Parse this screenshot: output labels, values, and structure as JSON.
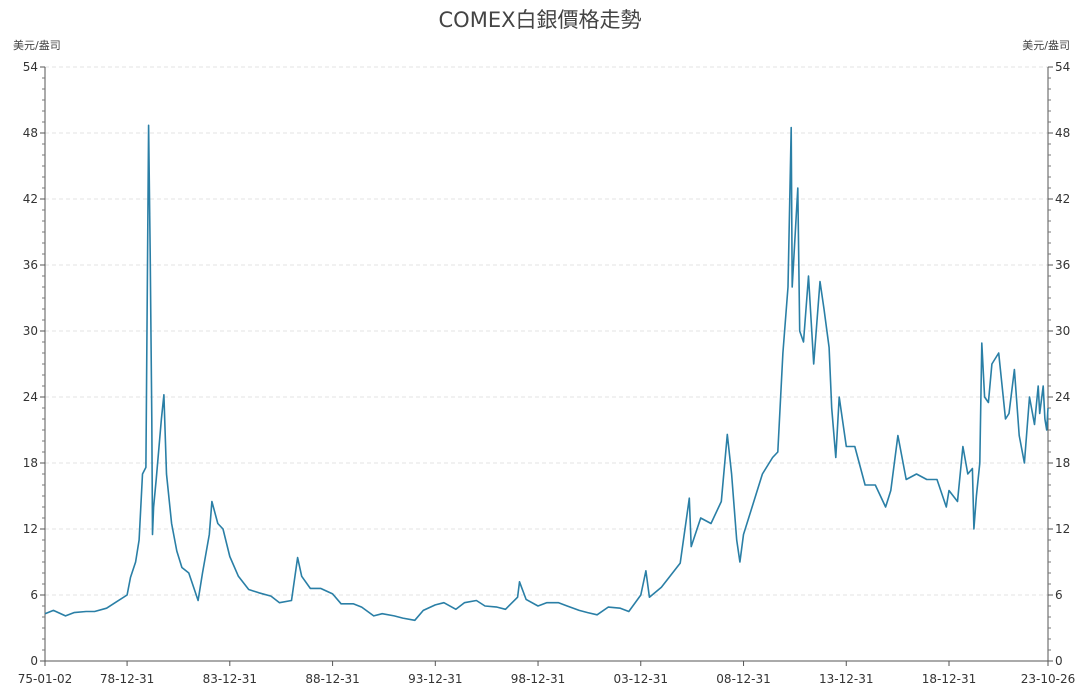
{
  "chart_data": {
    "type": "line",
    "title": "COMEX白銀價格走勢",
    "ylabel_left": "美元/盎司",
    "ylabel_right": "美元/盎司",
    "xlabel": "",
    "ylim": [
      0,
      54
    ],
    "yticks": [
      0,
      6,
      12,
      18,
      24,
      30,
      36,
      42,
      48,
      54
    ],
    "xlim": [
      "1975-01-02",
      "2023-10-26"
    ],
    "xtick_labels": [
      "75-01-02",
      "78-12-31",
      "83-12-31",
      "88-12-31",
      "93-12-31",
      "98-12-31",
      "03-12-31",
      "08-12-31",
      "13-12-31",
      "18-12-31",
      "23-10-26"
    ],
    "xtick_dates": [
      "1975-01-02",
      "1978-12-31",
      "1983-12-31",
      "1988-12-31",
      "1993-12-31",
      "1998-12-31",
      "2003-12-31",
      "2008-12-31",
      "2013-12-31",
      "2018-12-31",
      "2023-10-26"
    ],
    "grid": "horizontal dashed",
    "line_color": "#2a7fa6",
    "series": [
      {
        "name": "",
        "x": [
          "1975-01-02",
          "1975-06-01",
          "1976-01-01",
          "1976-06-01",
          "1977-01-01",
          "1977-06-01",
          "1978-01-01",
          "1978-06-01",
          "1978-12-31",
          "1979-03-01",
          "1979-06-01",
          "1979-08-01",
          "1979-10-01",
          "1979-12-01",
          "1980-01-18",
          "1980-02-15",
          "1980-03-15",
          "1980-03-27",
          "1980-04-15",
          "1980-06-01",
          "1980-09-01",
          "1980-10-15",
          "1980-12-01",
          "1981-03-01",
          "1981-06-01",
          "1981-09-01",
          "1982-01-01",
          "1982-06-15",
          "1982-09-01",
          "1983-01-01",
          "1983-02-15",
          "1983-06-01",
          "1983-09-01",
          "1983-12-31",
          "1984-06-01",
          "1984-12-01",
          "1985-06-01",
          "1986-01-01",
          "1986-06-01",
          "1987-01-01",
          "1987-04-20",
          "1987-07-01",
          "1987-12-01",
          "1988-06-01",
          "1988-12-31",
          "1989-06-01",
          "1990-01-01",
          "1990-06-01",
          "1991-01-01",
          "1991-06-01",
          "1992-01-01",
          "1992-06-01",
          "1993-01-01",
          "1993-06-01",
          "1993-12-31",
          "1994-06-01",
          "1995-01-01",
          "1995-06-01",
          "1996-01-01",
          "1996-06-01",
          "1997-01-01",
          "1997-06-01",
          "1998-01-01",
          "1998-02-05",
          "1998-06-01",
          "1998-12-31",
          "1999-06-01",
          "2000-01-01",
          "2000-06-01",
          "2001-01-01",
          "2001-06-01",
          "2001-11-15",
          "2002-06-01",
          "2003-01-01",
          "2003-06-01",
          "2003-12-31",
          "2004-04-01",
          "2004-06-01",
          "2005-01-01",
          "2005-12-01",
          "2006-05-12",
          "2006-06-15",
          "2006-12-01",
          "2007-06-01",
          "2007-12-01",
          "2008-03-17",
          "2008-06-01",
          "2008-09-01",
          "2008-10-27",
          "2008-12-31",
          "2009-06-01",
          "2009-12-01",
          "2010-06-01",
          "2010-09-01",
          "2010-12-01",
          "2011-03-01",
          "2011-04-28",
          "2011-05-15",
          "2011-08-22",
          "2011-09-26",
          "2011-12-01",
          "2012-02-28",
          "2012-06-01",
          "2012-09-20",
          "2012-12-01",
          "2013-03-01",
          "2013-04-16",
          "2013-06-28",
          "2013-08-28",
          "2013-12-31",
          "2014-06-01",
          "2014-12-01",
          "2015-06-01",
          "2015-12-01",
          "2016-03-01",
          "2016-07-05",
          "2016-12-01",
          "2017-06-01",
          "2017-12-01",
          "2018-06-01",
          "2018-11-14",
          "2018-12-31",
          "2019-06-01",
          "2019-09-04",
          "2019-12-01",
          "2020-02-20",
          "2020-03-18",
          "2020-05-01",
          "2020-07-01",
          "2020-08-06",
          "2020-09-24",
          "2020-12-01",
          "2021-02-01",
          "2021-06-01",
          "2021-09-30",
          "2021-12-01",
          "2022-03-08",
          "2022-06-01",
          "2022-09-01",
          "2022-12-01",
          "2023-02-28",
          "2023-05-05",
          "2023-06-01",
          "2023-08-01",
          "2023-09-01",
          "2023-10-03",
          "2023-10-26"
        ],
        "y": [
          4.3,
          4.6,
          4.1,
          4.4,
          4.5,
          4.5,
          4.8,
          5.3,
          6.0,
          7.6,
          9.0,
          11.0,
          17.0,
          17.6,
          48.7,
          37.0,
          22.0,
          11.5,
          14.0,
          16.5,
          22.0,
          24.2,
          17.0,
          12.5,
          10.0,
          8.5,
          8.0,
          5.5,
          8.0,
          11.5,
          14.5,
          12.5,
          12.0,
          9.5,
          7.7,
          6.5,
          6.2,
          5.9,
          5.3,
          5.5,
          9.4,
          7.7,
          6.6,
          6.6,
          6.1,
          5.2,
          5.2,
          4.9,
          4.1,
          4.3,
          4.1,
          3.9,
          3.7,
          4.6,
          5.1,
          5.3,
          4.7,
          5.3,
          5.5,
          5.0,
          4.9,
          4.7,
          5.8,
          7.2,
          5.6,
          5.0,
          5.3,
          5.3,
          5.0,
          4.6,
          4.4,
          4.2,
          4.9,
          4.8,
          4.5,
          6.0,
          8.2,
          5.8,
          6.7,
          8.9,
          14.8,
          10.4,
          13.0,
          12.5,
          14.5,
          20.6,
          17.0,
          11.0,
          9.0,
          11.5,
          14.0,
          17.0,
          18.5,
          19.0,
          28.0,
          34.0,
          48.5,
          34.0,
          43.0,
          30.0,
          29.0,
          35.0,
          27.0,
          34.5,
          32.0,
          28.5,
          23.0,
          18.5,
          24.0,
          19.5,
          19.5,
          16.0,
          16.0,
          14.0,
          15.5,
          20.5,
          16.5,
          17.0,
          16.5,
          16.5,
          14.0,
          15.5,
          14.5,
          19.5,
          17.0,
          17.5,
          12.0,
          15.0,
          18.0,
          28.9,
          24.0,
          23.5,
          27.0,
          28.0,
          22.0,
          22.5,
          26.5,
          20.5,
          18.0,
          24.0,
          21.5,
          25.0,
          22.5,
          25.0,
          22.0,
          21.0,
          23.0
        ]
      }
    ]
  }
}
